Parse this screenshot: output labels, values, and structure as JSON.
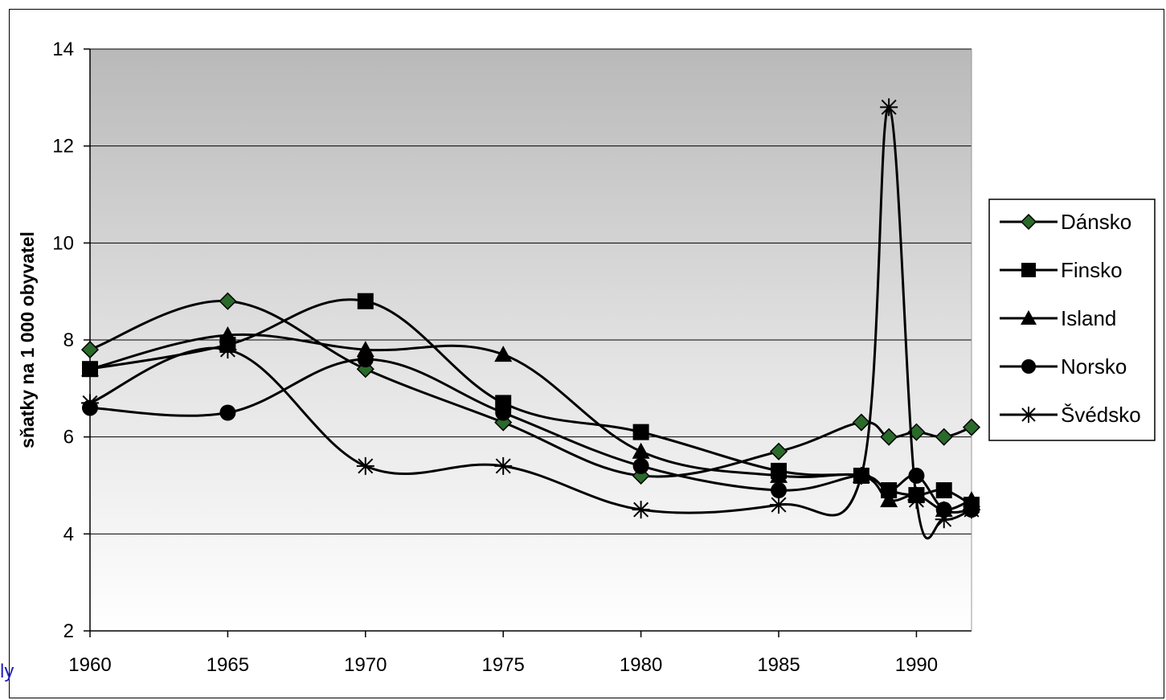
{
  "corner_fragment": "ly",
  "chart_data": {
    "type": "line",
    "title": "",
    "xlabel": "",
    "ylabel": "sňatky na 1 000 obyvatel",
    "xlim": [
      1960,
      1992
    ],
    "ylim": [
      2,
      14
    ],
    "xticks": [
      1960,
      1965,
      1970,
      1975,
      1980,
      1985,
      1990
    ],
    "yticks": [
      2,
      4,
      6,
      8,
      10,
      12,
      14
    ],
    "grid": true,
    "legend": "right",
    "x": [
      1960,
      1965,
      1970,
      1975,
      1980,
      1985,
      1988,
      1989,
      1990,
      1991,
      1992
    ],
    "series": [
      {
        "name": "Dánsko",
        "marker": "diamond",
        "color": "#1f5f1f",
        "values": [
          7.8,
          8.8,
          7.4,
          6.3,
          5.2,
          5.7,
          6.3,
          6.0,
          6.1,
          6.0,
          6.2
        ]
      },
      {
        "name": "Finsko",
        "marker": "square",
        "color": "#000000",
        "values": [
          7.4,
          7.9,
          8.8,
          6.7,
          6.1,
          5.3,
          5.2,
          4.9,
          4.8,
          4.9,
          4.6
        ]
      },
      {
        "name": "Island",
        "marker": "triangle",
        "color": "#000000",
        "values": [
          7.4,
          8.1,
          7.8,
          7.7,
          5.7,
          5.2,
          5.2,
          4.7,
          4.8,
          4.5,
          4.7
        ]
      },
      {
        "name": "Norsko",
        "marker": "circle",
        "color": "#000000",
        "values": [
          6.6,
          6.5,
          7.6,
          6.5,
          5.4,
          4.9,
          5.2,
          4.9,
          5.2,
          4.5,
          4.5
        ]
      },
      {
        "name": "Švédsko",
        "marker": "star",
        "color": "#000000",
        "values": [
          6.7,
          7.8,
          5.4,
          5.4,
          4.5,
          4.6,
          5.2,
          12.8,
          4.7,
          4.3,
          4.5
        ]
      }
    ]
  }
}
